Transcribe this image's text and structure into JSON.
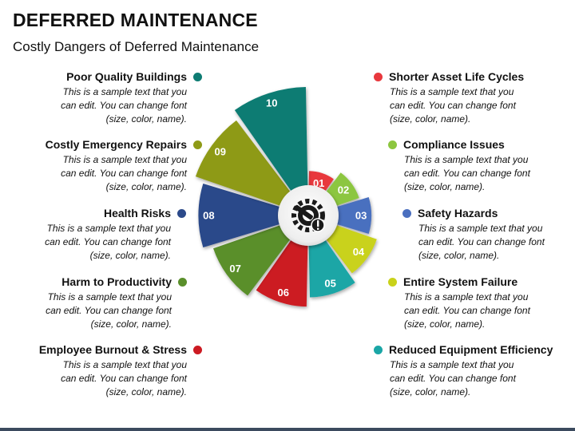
{
  "title": "DEFERRED MAINTENANCE",
  "subtitle": "Costly Dangers of Deferred Maintenance",
  "left_items": [
    {
      "heading": "Poor Quality Buildings",
      "desc": [
        "This is a sample text that you",
        "can edit. You can change font",
        "(size, color, name)."
      ],
      "color": "#0e7c73"
    },
    {
      "heading": "Costly Emergency Repairs",
      "desc": [
        "This is a sample text that you",
        "can edit. You can change font",
        "(size, color, name)."
      ],
      "color": "#8e9a16"
    },
    {
      "heading": "Health Risks",
      "desc": [
        "This is a sample text that you",
        "can edit. You can change font",
        "(size, color, name)."
      ],
      "color": "#2c4a8a"
    },
    {
      "heading": "Harm to Productivity",
      "desc": [
        "This is a sample text that you",
        "can edit. You can change font",
        "(size, color, name)."
      ],
      "color": "#5a8f2b"
    },
    {
      "heading": "Employee Burnout & Stress",
      "desc": [
        "This is a sample text that you",
        "can edit. You can change font",
        "(size, color, name)."
      ],
      "color": "#cc1a22"
    }
  ],
  "right_items": [
    {
      "heading": "Shorter Asset Life Cycles",
      "desc": [
        "This is a sample text that you",
        "can edit. You can change font",
        "(size, color, name)."
      ],
      "color": "#e8383d"
    },
    {
      "heading": "Compliance Issues",
      "desc": [
        "This is a sample text that you",
        "can edit. You can change font",
        "(size, color, name)."
      ],
      "color": "#8cc63f"
    },
    {
      "heading": "Safety Hazards",
      "desc": [
        "This is a sample text that you",
        "can edit. You can change font",
        "(size, color, name)."
      ],
      "color": "#4a6fbf"
    },
    {
      "heading": "Entire System Failure",
      "desc": [
        "This is a sample text that you",
        "can edit. You can change font",
        "(size, color, name)."
      ],
      "color": "#c9d21a"
    },
    {
      "heading": "Reduced Equipment Efficiency",
      "desc": [
        "This is a sample text that you",
        "can edit. You can change font",
        "(size, color, name)."
      ],
      "color": "#1aa6a6"
    }
  ],
  "segments": [
    {
      "label": "01",
      "value": 1,
      "color": "#e8383d"
    },
    {
      "label": "02",
      "value": 2,
      "color": "#8cc63f"
    },
    {
      "label": "03",
      "value": 3,
      "color": "#4a6fbf"
    },
    {
      "label": "04",
      "value": 4,
      "color": "#c9d21a"
    },
    {
      "label": "05",
      "value": 5,
      "color": "#1aa6a6"
    },
    {
      "label": "06",
      "value": 6,
      "color": "#cc1a22"
    },
    {
      "label": "07",
      "value": 7,
      "color": "#5a8f2b"
    },
    {
      "label": "08",
      "value": 8,
      "color": "#2c4a8a"
    },
    {
      "label": "09",
      "value": 9,
      "color": "#8e9a16"
    },
    {
      "label": "10",
      "value": 10,
      "color": "#0e7c73"
    }
  ],
  "center_icon": "gear-wrench-warning-icon",
  "footer_bar_color": "#3b4a5e"
}
